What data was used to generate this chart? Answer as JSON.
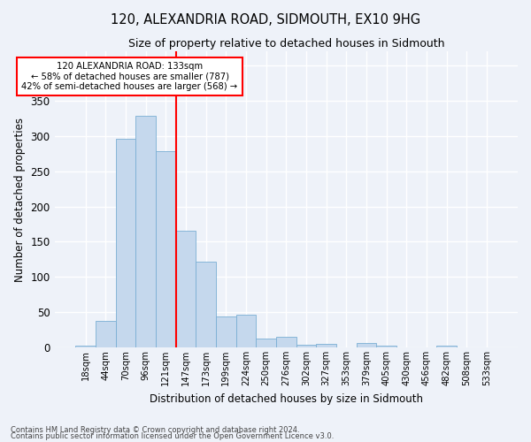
{
  "title": "120, ALEXANDRIA ROAD, SIDMOUTH, EX10 9HG",
  "subtitle": "Size of property relative to detached houses in Sidmouth",
  "xlabel": "Distribution of detached houses by size in Sidmouth",
  "ylabel": "Number of detached properties",
  "bar_color": "#c5d8ed",
  "bar_edge_color": "#7aafd4",
  "bar_values": [
    2,
    38,
    296,
    328,
    279,
    166,
    122,
    44,
    46,
    13,
    15,
    4,
    5,
    0,
    6,
    2,
    0,
    0,
    2,
    0,
    0
  ],
  "bin_labels": [
    "18sqm",
    "44sqm",
    "70sqm",
    "96sqm",
    "121sqm",
    "147sqm",
    "173sqm",
    "199sqm",
    "224sqm",
    "250sqm",
    "276sqm",
    "302sqm",
    "327sqm",
    "353sqm",
    "379sqm",
    "405sqm",
    "430sqm",
    "456sqm",
    "482sqm",
    "508sqm",
    "533sqm"
  ],
  "property_line_x": 4.5,
  "property_sqm": 133,
  "pct_smaller": 58,
  "n_smaller": 787,
  "pct_larger_semi": 42,
  "n_larger_semi": 568,
  "annotation_box_color": "white",
  "annotation_box_edge": "red",
  "red_line_color": "red",
  "ylim": [
    0,
    420
  ],
  "footnote1": "Contains HM Land Registry data © Crown copyright and database right 2024.",
  "footnote2": "Contains public sector information licensed under the Open Government Licence v3.0.",
  "background_color": "#eef2f9",
  "grid_color": "white"
}
